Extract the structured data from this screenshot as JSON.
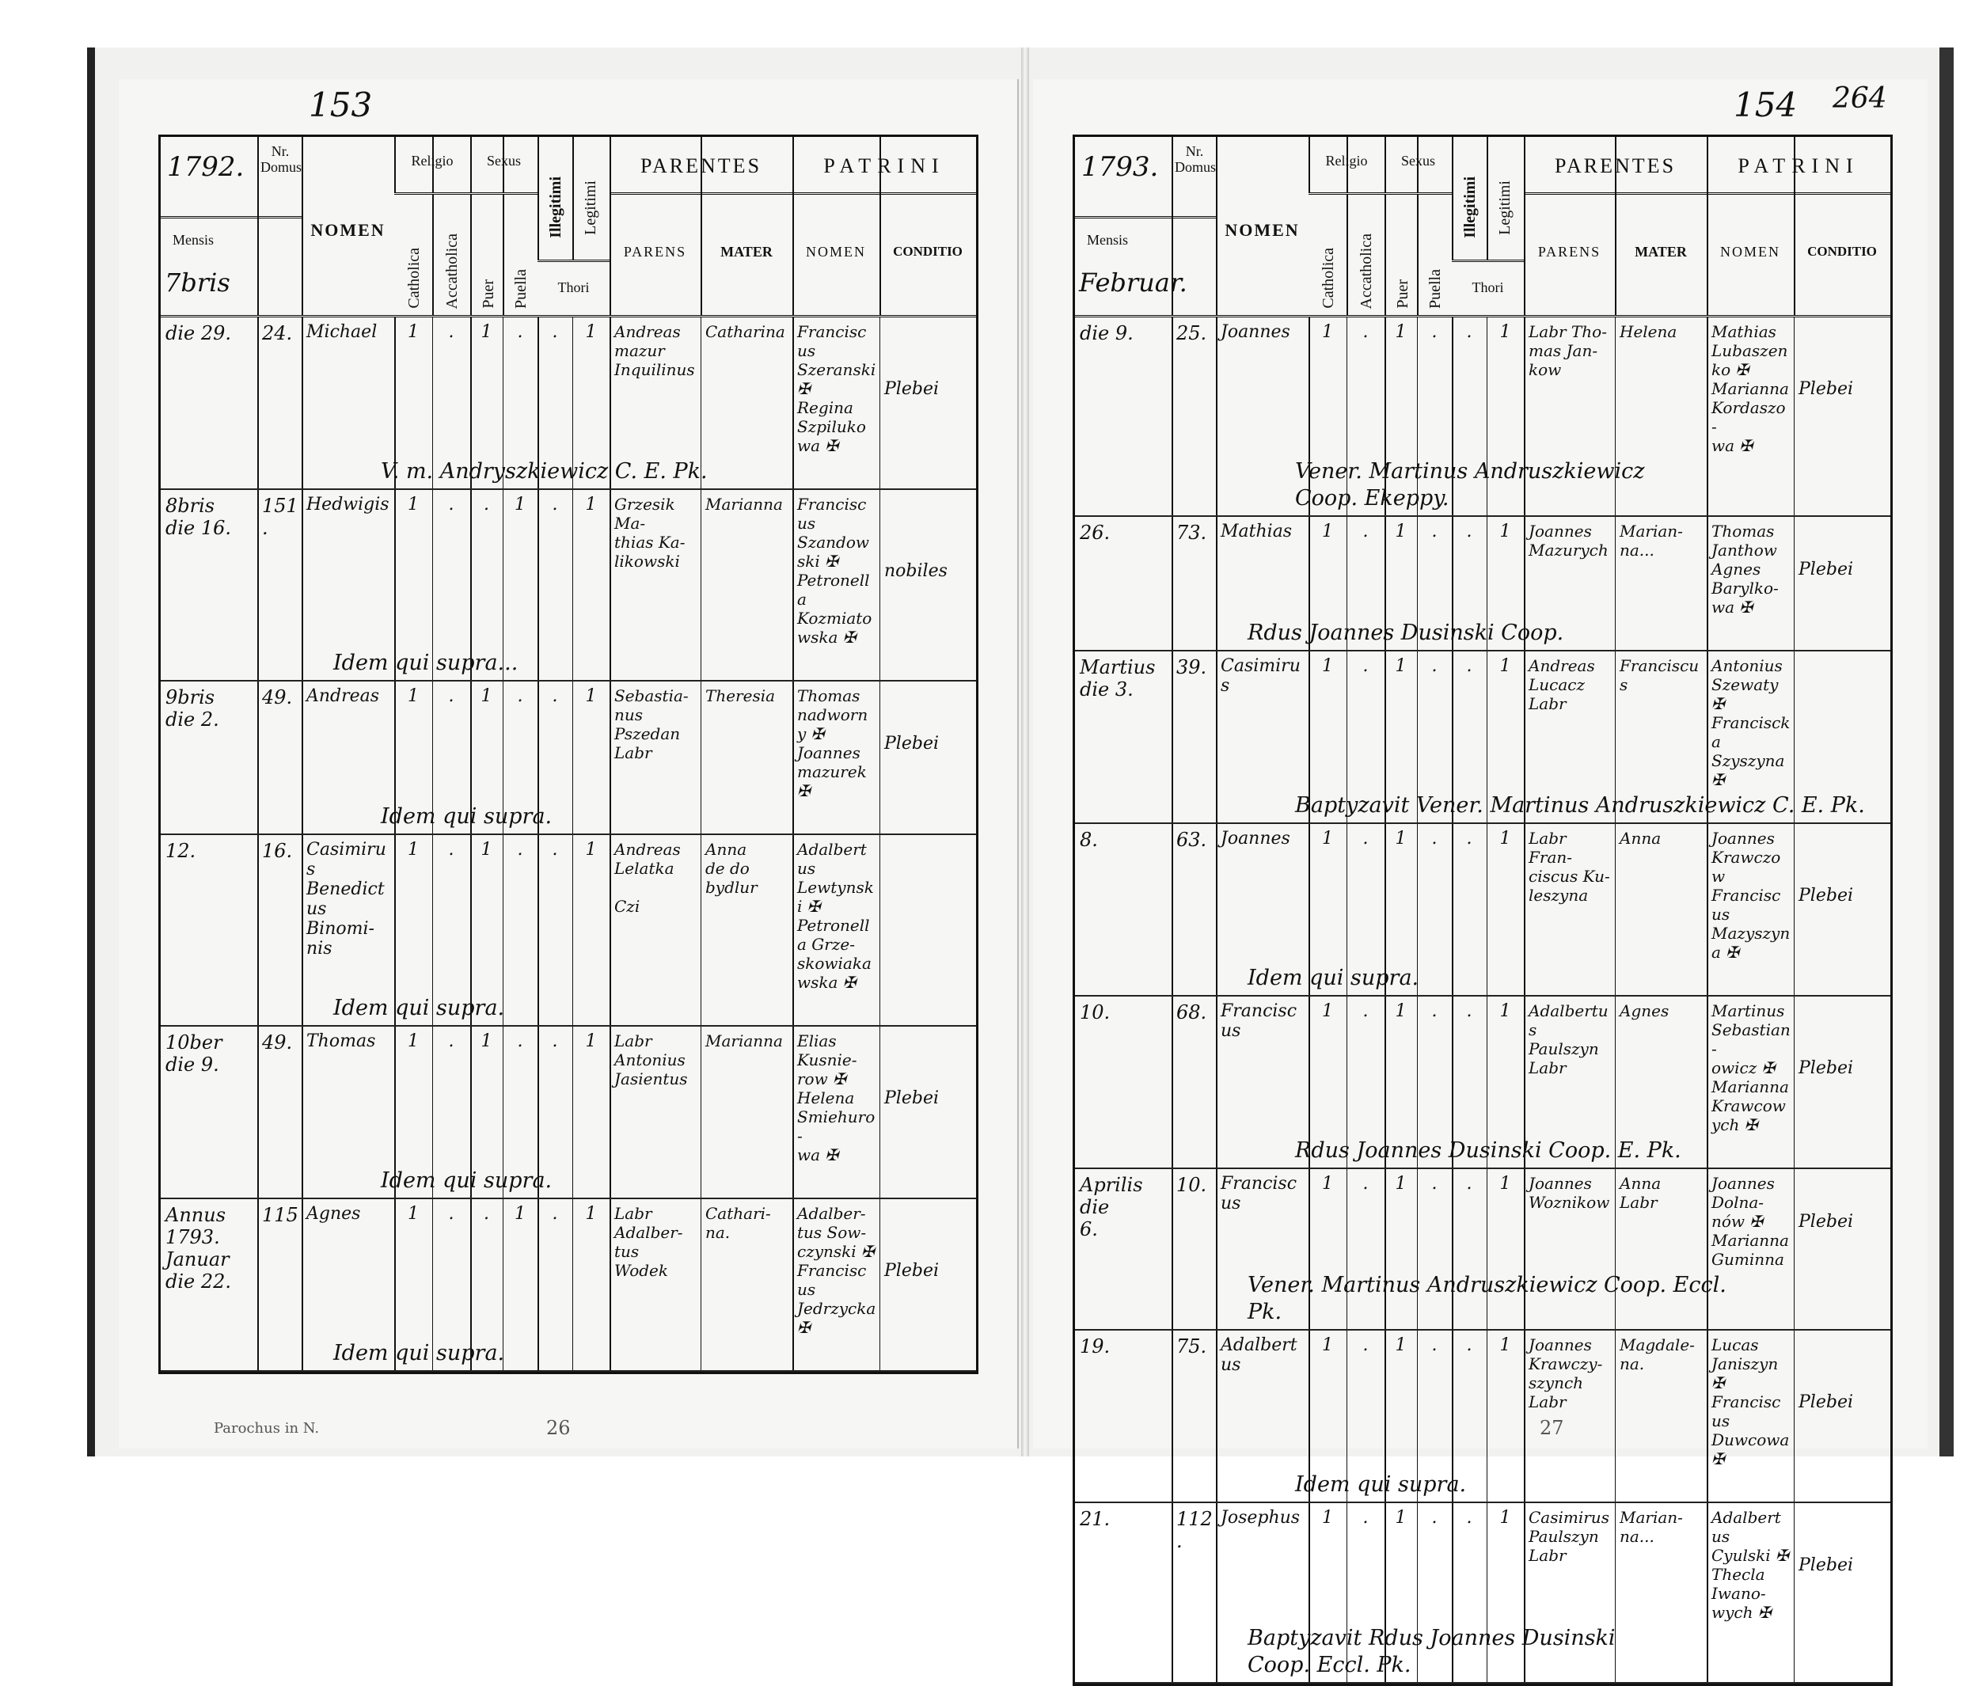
{
  "header_labels": {
    "nr_domus": "Nr. Domus",
    "mensis": "Mensis",
    "nomen": "NOMEN",
    "religio": "Religio",
    "catholica": "Catholica",
    "accatholica": "Accatholica",
    "sexus": "Sexus",
    "puer": "Puer",
    "puella": "Puella",
    "illegitimi": "Illegitimi",
    "legitimi": "Legitimi",
    "thori": "Thori",
    "parentes": "PARENTES",
    "parens": "PARENS",
    "mater": "MATER",
    "patrini": "PATRINI",
    "patrini_nomen": "NOMEN",
    "conditio": "CONDITIO"
  },
  "left_page": {
    "year": "1792.",
    "page_number": "153",
    "month": "7bris",
    "footer_note": "Parochus in N.",
    "bottom_number": "26",
    "entries": [
      {
        "date": "die 29.",
        "domus": "24.",
        "nomen": "Michael",
        "marks": [
          "1",
          ".",
          "1",
          ".",
          ".",
          "1"
        ],
        "parens": "Andreas\nmazur\nInquilinus",
        "mater": "Catharina",
        "patrini": "Franciscus\nSzeranski ✠\nRegina\nSzpilukowa ✠",
        "conditio": "Plebei",
        "remark": "V. m. Andryszkiewicz C. E. Pk."
      },
      {
        "date": "8bris\ndie 16.",
        "domus": "151.",
        "nomen": "Hedwigis",
        "marks": [
          "1",
          ".",
          ".",
          "1",
          ".",
          "1"
        ],
        "parens": "Grzesik Ma-\nthias Ka-\nlikowski",
        "mater": "Marianna",
        "patrini": "Franciscus\nSzandowski ✠\nPetronella\nKozmiatowska ✠",
        "conditio": "nobiles",
        "remark": "Idem qui supra..."
      },
      {
        "date": "9bris\ndie 2.",
        "domus": "49.",
        "nomen": "Andreas",
        "marks": [
          "1",
          ".",
          "1",
          ".",
          ".",
          "1"
        ],
        "parens": "Sebastia-\nnus Pszedan\nLabr",
        "mater": "Theresia",
        "patrini": "Thomas\nnadworny ✠\nJoannes\nmazurek ✠",
        "conditio": "Plebei",
        "remark": "Idem qui supra."
      },
      {
        "date": "12.",
        "domus": "16.",
        "nomen": "Casimirus\nBenedictus\nBinomi-\nnis",
        "marks": [
          "1",
          ".",
          "1",
          ".",
          ".",
          "1"
        ],
        "parens": "Andreas\nLelatka\n\nCzi",
        "mater": "Anna\nde do\nbydlur",
        "patrini": "Adalbertus\nLewtynski ✠\nPetronella Grze-\nskowiaka\nwska ✠",
        "conditio": "",
        "remark": "Idem qui supra."
      },
      {
        "date": "10ber\ndie 9.",
        "domus": "49.",
        "nomen": "Thomas",
        "marks": [
          "1",
          ".",
          "1",
          ".",
          ".",
          "1"
        ],
        "parens": "Labr\nAntonius\nJasientus",
        "mater": "Marianna",
        "patrini": "Elias\nKusnie-\nrow ✠\nHelena\nSmiehuro-\nwa ✠",
        "conditio": "Plebei",
        "remark": "Idem qui supra."
      },
      {
        "date": "Annus\n1793.\nJanuar\ndie 22.",
        "domus": "115",
        "nomen": "Agnes",
        "marks": [
          "1",
          ".",
          ".",
          "1",
          ".",
          "1"
        ],
        "parens": "Labr\nAdalber-\ntus Wodek",
        "mater": "Cathari-\nna.",
        "patrini": "Adalber-\ntus Sow-\nczynski ✠\nFranciscus\nJedrzycka\n✠",
        "conditio": "Plebei",
        "remark": "Idem qui supra."
      }
    ]
  },
  "right_page": {
    "year": "1793.",
    "page_number": "154",
    "page_number_alt": "264",
    "month": "Februar.",
    "bottom_number": "27",
    "entries": [
      {
        "date": "die 9.",
        "domus": "25.",
        "nomen": "Joannes",
        "marks": [
          "1",
          ".",
          "1",
          ".",
          ".",
          "1"
        ],
        "parens": "Labr Tho-\nmas Jan-\nkow",
        "mater": "Helena",
        "patrini": "Mathias\nLubaszenko ✠\nMarianna\nKordaszo-\nwa ✠",
        "conditio": "Plebei",
        "remark": "Vener. Martinus Andruszkiewicz\nCoop. Ekeppy."
      },
      {
        "date": "26.",
        "domus": "73.",
        "nomen": "Mathias",
        "marks": [
          "1",
          ".",
          "1",
          ".",
          ".",
          "1"
        ],
        "parens": "Joannes\nMazurych",
        "mater": "Marian-\nna...",
        "patrini": "Thomas\nJanthow\nAgnes\nBarylko-\nwa ✠",
        "conditio": "Plebei",
        "remark": "Rdus Joannes Dusinski Coop."
      },
      {
        "date": "Martius\ndie 3.",
        "domus": "39.",
        "nomen": "Casimirus",
        "marks": [
          "1",
          ".",
          "1",
          ".",
          ".",
          "1"
        ],
        "parens": "Andreas\nLucacz\nLabr",
        "mater": "Franciscus",
        "patrini": "Antonius\nSzewaty ✠\nFranciscka\nSzyszyna ✠",
        "conditio": "",
        "remark": "Baptyzavit Vener. Martinus Andruszkiewicz C. E. Pk."
      },
      {
        "date": "8.",
        "domus": "63.",
        "nomen": "Joannes",
        "marks": [
          "1",
          ".",
          "1",
          ".",
          ".",
          "1"
        ],
        "parens": "Labr Fran-\nciscus Ku-\nleszyna",
        "mater": "Anna",
        "patrini": "Joannes\nKrawczow\nFranciscus\nMazyszyna ✠",
        "conditio": "Plebei",
        "remark": "Idem qui supra."
      },
      {
        "date": "10.",
        "domus": "68.",
        "nomen": "Franciscus",
        "marks": [
          "1",
          ".",
          "1",
          ".",
          ".",
          "1"
        ],
        "parens": "Adalbertus\nPaulszyn\nLabr",
        "mater": "Agnes",
        "patrini": "Martinus\nSebastian-\nowicz ✠\nMarianna\nKrawcowych ✠",
        "conditio": "Plebei",
        "remark": "Rdus Joannes Dusinski Coop. E. Pk."
      },
      {
        "date": "Aprilis\ndie\n6.",
        "domus": "10.",
        "nomen": "Franciscus",
        "marks": [
          "1",
          ".",
          "1",
          ".",
          ".",
          "1"
        ],
        "parens": "Joannes\nWoznikow",
        "mater": "Anna\nLabr",
        "patrini": "Joannes\nDolna-\nnów ✠\nMarianna\nGuminna",
        "conditio": "Plebei",
        "remark": "Vener. Martinus Andruszkiewicz Coop. Eccl.\nPk."
      },
      {
        "date": "19.",
        "domus": "75.",
        "nomen": "Adalbertus",
        "marks": [
          "1",
          ".",
          "1",
          ".",
          ".",
          "1"
        ],
        "parens": "Joannes\nKrawczy-\nszynch\nLabr",
        "mater": "Magdale-\nna.",
        "patrini": "Lucas\nJaniszyn ✠\nFranciscus\nDuwcowa ✠",
        "conditio": "Plebei",
        "remark": "Idem qui supra."
      },
      {
        "date": "21.",
        "domus": "112.",
        "nomen": "Josephus",
        "marks": [
          "1",
          ".",
          "1",
          ".",
          ".",
          "1"
        ],
        "parens": "Casimirus\nPaulszyn\nLabr",
        "mater": "Marian-\nna...",
        "patrini": "Adalbertus\nCyulski ✠\nThecla\nIwano-\nwych ✠",
        "conditio": "Plebei",
        "remark": "Baptyzavit Rdus Joannes Dusinski\nCoop. Eccl. Pk."
      }
    ]
  }
}
